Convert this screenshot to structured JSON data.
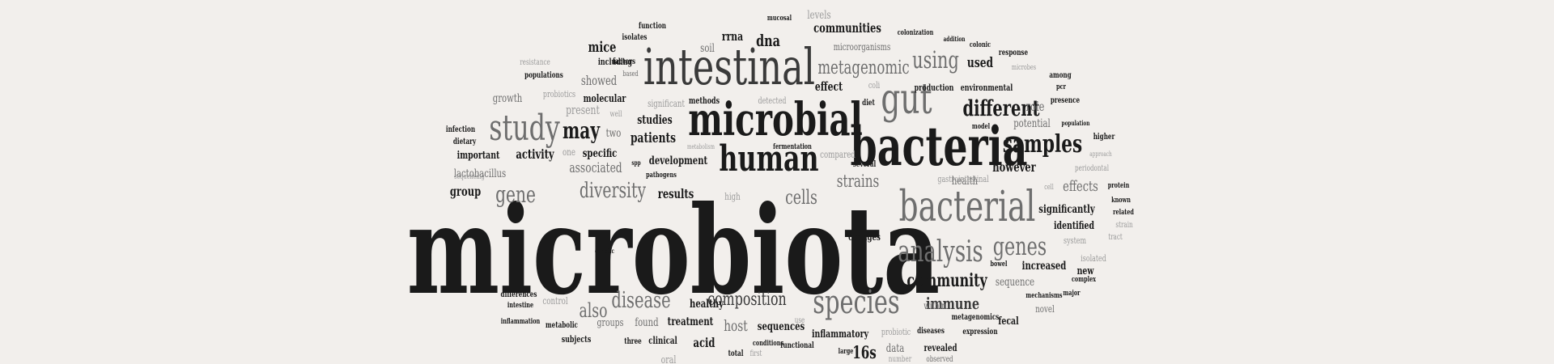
{
  "colors": {
    "background": "#f2efec",
    "black": "#1a1a1a",
    "dark": "#3a3a3a",
    "mid": "#6e6e6e",
    "light": "#9a9a9a"
  },
  "words": [
    {
      "t": "microbiota",
      "c": "black"
    },
    {
      "t": "bacteria",
      "c": "black"
    },
    {
      "t": "microbial",
      "c": "black"
    },
    {
      "t": "intestinal",
      "c": "dark"
    },
    {
      "t": "bacterial",
      "c": "mid"
    },
    {
      "t": "gut",
      "c": "mid"
    },
    {
      "t": "human",
      "c": "black"
    },
    {
      "t": "study",
      "c": "mid"
    },
    {
      "t": "species",
      "c": "mid"
    },
    {
      "t": "analysis",
      "c": "mid"
    },
    {
      "t": "samples",
      "c": "black"
    },
    {
      "t": "different",
      "c": "black"
    },
    {
      "t": "genes",
      "c": "mid"
    },
    {
      "t": "metagenomic",
      "c": "mid"
    },
    {
      "t": "using",
      "c": "mid"
    },
    {
      "t": "may",
      "c": "black"
    },
    {
      "t": "gene",
      "c": "mid"
    },
    {
      "t": "diversity",
      "c": "mid"
    },
    {
      "t": "disease",
      "c": "mid"
    },
    {
      "t": "community",
      "c": "black"
    },
    {
      "t": "composition",
      "c": "dark"
    },
    {
      "t": "cells",
      "c": "mid"
    },
    {
      "t": "strains",
      "c": "mid"
    },
    {
      "t": "immune",
      "c": "dark"
    },
    {
      "t": "also",
      "c": "mid"
    },
    {
      "t": "16s",
      "c": "black"
    },
    {
      "t": "dna",
      "c": "black"
    },
    {
      "t": "mice",
      "c": "black"
    },
    {
      "t": "effects",
      "c": "mid"
    },
    {
      "t": "host",
      "c": "mid"
    },
    {
      "t": "used",
      "c": "black"
    },
    {
      "t": "communities",
      "c": "black"
    },
    {
      "t": "activity",
      "c": "black"
    },
    {
      "t": "patients",
      "c": "black"
    },
    {
      "t": "associated",
      "c": "mid"
    },
    {
      "t": "present",
      "c": "light"
    },
    {
      "t": "studies",
      "c": "black"
    },
    {
      "t": "however",
      "c": "black"
    },
    {
      "t": "role",
      "c": "mid"
    },
    {
      "t": "development",
      "c": "black"
    },
    {
      "t": "results",
      "c": "black"
    },
    {
      "t": "group",
      "c": "black"
    },
    {
      "t": "effect",
      "c": "black"
    },
    {
      "t": "soil",
      "c": "mid"
    },
    {
      "t": "rrna",
      "c": "black"
    },
    {
      "t": "levels",
      "c": "light"
    },
    {
      "t": "showed",
      "c": "mid"
    },
    {
      "t": "two",
      "c": "mid"
    },
    {
      "t": "lactobacillus",
      "c": "mid"
    },
    {
      "t": "specific",
      "c": "black"
    },
    {
      "t": "important",
      "c": "black"
    },
    {
      "t": "growth",
      "c": "mid"
    },
    {
      "t": "potential",
      "c": "mid"
    },
    {
      "t": "health",
      "c": "mid"
    },
    {
      "t": "sequence",
      "c": "mid"
    },
    {
      "t": "increased",
      "c": "black"
    },
    {
      "t": "significantly",
      "c": "black"
    },
    {
      "t": "identified",
      "c": "black"
    },
    {
      "t": "healthy",
      "c": "black"
    },
    {
      "t": "found",
      "c": "mid"
    },
    {
      "t": "groups",
      "c": "mid"
    },
    {
      "t": "treatment",
      "c": "black"
    },
    {
      "t": "sequences",
      "c": "black"
    },
    {
      "t": "inflammatory",
      "c": "black"
    },
    {
      "t": "acid",
      "c": "black"
    },
    {
      "t": "data",
      "c": "mid"
    },
    {
      "t": "revealed",
      "c": "black"
    },
    {
      "t": "fecal",
      "c": "black"
    },
    {
      "t": "new",
      "c": "black"
    },
    {
      "t": "high",
      "c": "light"
    },
    {
      "t": "changes",
      "c": "black"
    },
    {
      "t": "compared",
      "c": "light"
    },
    {
      "t": "microorganisms",
      "c": "mid"
    },
    {
      "t": "molecular",
      "c": "black"
    },
    {
      "t": "production",
      "c": "black"
    },
    {
      "t": "environmental",
      "c": "black"
    },
    {
      "t": "significant",
      "c": "light"
    },
    {
      "t": "methods",
      "c": "black"
    },
    {
      "t": "detected",
      "c": "light"
    },
    {
      "t": "probiotics",
      "c": "light"
    },
    {
      "t": "populations",
      "c": "black"
    },
    {
      "t": "including",
      "c": "black"
    },
    {
      "t": "resistance",
      "c": "light"
    },
    {
      "t": "factors",
      "c": "black"
    },
    {
      "t": "based",
      "c": "mid"
    },
    {
      "t": "function",
      "c": "black"
    },
    {
      "t": "isolates",
      "c": "black"
    },
    {
      "t": "mucosal",
      "c": "black"
    },
    {
      "t": "colonization",
      "c": "black"
    },
    {
      "t": "addition",
      "c": "black"
    },
    {
      "t": "colonic",
      "c": "black"
    },
    {
      "t": "response",
      "c": "black"
    },
    {
      "t": "microbes",
      "c": "light"
    },
    {
      "t": "among",
      "c": "black"
    },
    {
      "t": "pcr",
      "c": "black"
    },
    {
      "t": "presence",
      "c": "black"
    },
    {
      "t": "coli",
      "c": "light"
    },
    {
      "t": "diet",
      "c": "black"
    },
    {
      "t": "population",
      "c": "black"
    },
    {
      "t": "higher",
      "c": "black"
    },
    {
      "t": "approach",
      "c": "light"
    },
    {
      "t": "periodontal",
      "c": "light"
    },
    {
      "t": "cell",
      "c": "light"
    },
    {
      "t": "protein",
      "c": "black"
    },
    {
      "t": "known",
      "c": "black"
    },
    {
      "t": "related",
      "c": "black"
    },
    {
      "t": "strain",
      "c": "light"
    },
    {
      "t": "tract",
      "c": "light"
    },
    {
      "t": "system",
      "c": "light"
    },
    {
      "t": "isolated",
      "c": "light"
    },
    {
      "t": "complex",
      "c": "black"
    },
    {
      "t": "major",
      "c": "black"
    },
    {
      "t": "mechanisms",
      "c": "black"
    },
    {
      "t": "bowel",
      "c": "black"
    },
    {
      "t": "novel",
      "c": "mid"
    },
    {
      "t": "within",
      "c": "mid"
    },
    {
      "t": "metagenomics",
      "c": "black"
    },
    {
      "t": "expression",
      "c": "black"
    },
    {
      "t": "diseases",
      "c": "black"
    },
    {
      "t": "probiotic",
      "c": "light"
    },
    {
      "t": "number",
      "c": "light"
    },
    {
      "t": "observed",
      "c": "mid"
    },
    {
      "t": "large",
      "c": "black"
    },
    {
      "t": "functional",
      "c": "black"
    },
    {
      "t": "conditions",
      "c": "black"
    },
    {
      "t": "first",
      "c": "light"
    },
    {
      "t": "total",
      "c": "black"
    },
    {
      "t": "use",
      "c": "light"
    },
    {
      "t": "oral",
      "c": "light"
    },
    {
      "t": "clinical",
      "c": "black"
    },
    {
      "t": "three",
      "c": "black"
    },
    {
      "t": "subjects",
      "c": "black"
    },
    {
      "t": "metabolic",
      "c": "black"
    },
    {
      "t": "control",
      "c": "light"
    },
    {
      "t": "inflammation",
      "c": "black"
    },
    {
      "t": "intestine",
      "c": "black"
    },
    {
      "t": "differences",
      "c": "black"
    },
    {
      "t": "genetic",
      "c": "black"
    },
    {
      "t": "gastrointestinal",
      "c": "light"
    },
    {
      "t": "model",
      "c": "black"
    },
    {
      "t": "several",
      "c": "black"
    },
    {
      "t": "fermentation",
      "c": "black"
    },
    {
      "t": "pathogens",
      "c": "black"
    },
    {
      "t": "metabolism",
      "c": "light"
    },
    {
      "t": "spp",
      "c": "black"
    },
    {
      "t": "one",
      "c": "light"
    },
    {
      "t": "well",
      "c": "light"
    },
    {
      "t": "infection",
      "c": "black"
    },
    {
      "t": "dietary",
      "c": "black"
    },
    {
      "t": "sequencing",
      "c": "light"
    }
  ]
}
